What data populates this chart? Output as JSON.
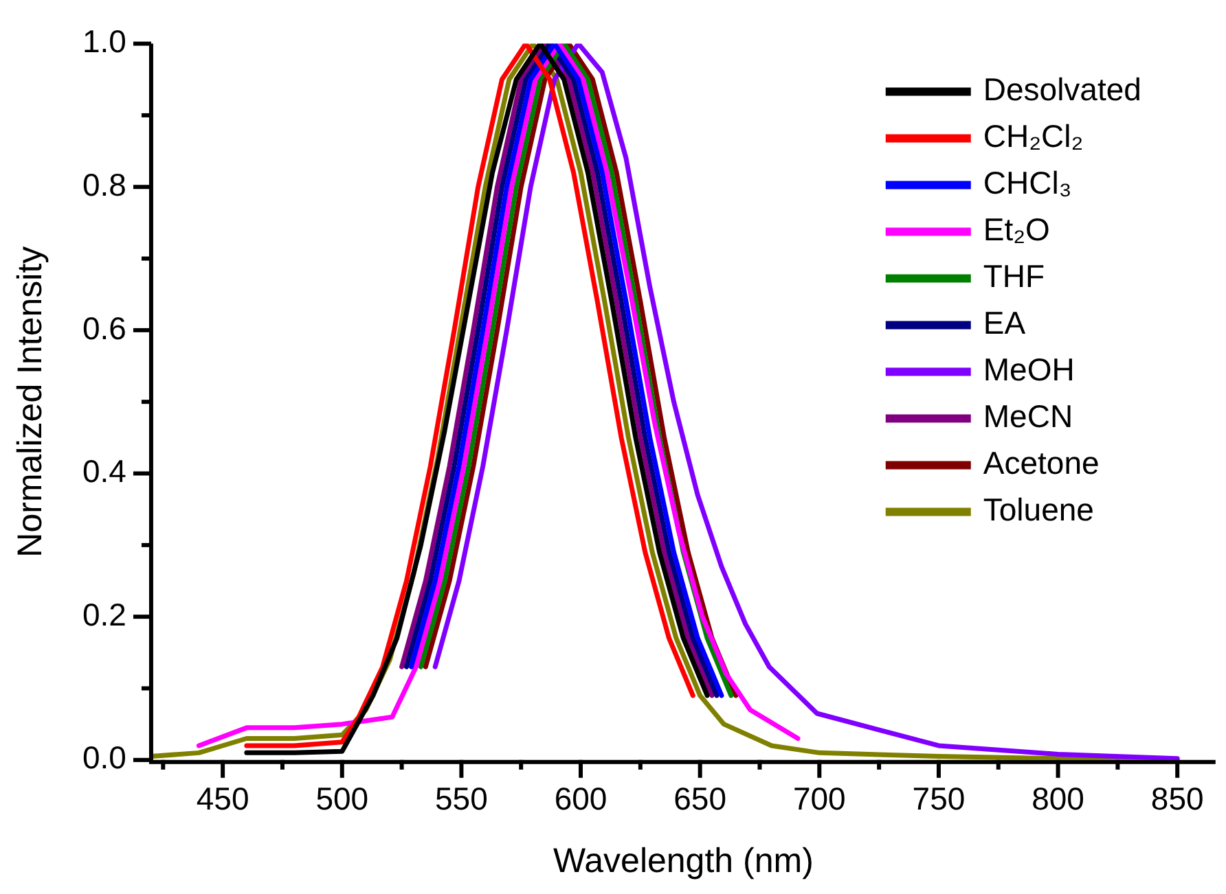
{
  "chart_data": {
    "type": "line",
    "xlabel": "Wavelength (nm)",
    "ylabel": "Normalized Intensity",
    "xlim": [
      420,
      866
    ],
    "ylim": [
      0,
      1.0
    ],
    "xticks": [
      {
        "value": 425,
        "label": null
      },
      450,
      {
        "value": 475,
        "label": null
      },
      500,
      {
        "value": 525,
        "label": null
      },
      550,
      {
        "value": 575,
        "label": null
      },
      600,
      {
        "value": 625,
        "label": null
      },
      650,
      {
        "value": 675,
        "label": null
      },
      700,
      {
        "value": 725,
        "label": null
      },
      750,
      {
        "value": 775,
        "label": null
      },
      800,
      {
        "value": 825,
        "label": null
      },
      850
    ],
    "yticks": [
      {
        "value": 0,
        "label": "0.0"
      },
      {
        "value": 0.1,
        "label": null
      },
      0.2,
      {
        "value": 0.3,
        "label": null
      },
      0.4,
      {
        "value": 0.5,
        "label": null
      },
      0.6,
      {
        "value": 0.7,
        "label": null
      },
      0.8,
      {
        "value": 0.9,
        "label": null
      },
      {
        "value": 1.0,
        "label": "1.0"
      }
    ],
    "legend": "top right",
    "grid": false,
    "marker": "none",
    "line_style": "solid",
    "series": [
      {
        "name": "Desolvated",
        "color": "#000000",
        "x": [
          460,
          480,
          500,
          513,
          523,
          533,
          543,
          553,
          563,
          573,
          583,
          593,
          603,
          613,
          623,
          633,
          643,
          653
        ],
        "values": [
          0.01,
          0.01,
          0.012,
          0.09,
          0.17,
          0.3,
          0.46,
          0.64,
          0.82,
          0.95,
          1,
          0.95,
          0.82,
          0.64,
          0.45,
          0.29,
          0.17,
          0.09
        ]
      },
      {
        "name": "CH₂Cl₂",
        "color": "#ff0000",
        "x": [
          460,
          480,
          500,
          507,
          517,
          527,
          537,
          547,
          557,
          567,
          577,
          587,
          597,
          607,
          617,
          627,
          637,
          647
        ],
        "values": [
          0.02,
          0.02,
          0.025,
          0.06,
          0.13,
          0.25,
          0.41,
          0.6,
          0.8,
          0.95,
          1,
          0.95,
          0.82,
          0.64,
          0.45,
          0.29,
          0.17,
          0.09
        ]
      },
      {
        "name": "CHCl₃",
        "color": "#0000ff",
        "x": [
          529,
          539,
          549,
          559,
          569,
          579,
          589,
          599,
          609,
          619,
          629,
          639,
          649,
          659
        ],
        "values": [
          0.13,
          0.25,
          0.41,
          0.6,
          0.8,
          0.95,
          1,
          0.95,
          0.82,
          0.64,
          0.45,
          0.29,
          0.17,
          0.09
        ]
      },
      {
        "name": "Et₂O",
        "color": "#ff00ff",
        "x": [
          440,
          460,
          480,
          500,
          521,
          531,
          541,
          551,
          561,
          571,
          581,
          591,
          601,
          611,
          621,
          631,
          641,
          651,
          661,
          671,
          691
        ],
        "values": [
          0.02,
          0.045,
          0.045,
          0.05,
          0.06,
          0.13,
          0.25,
          0.41,
          0.6,
          0.8,
          0.95,
          1,
          0.95,
          0.82,
          0.65,
          0.47,
          0.32,
          0.2,
          0.12,
          0.07,
          0.03
        ]
      },
      {
        "name": "THF",
        "color": "#008000",
        "x": [
          533,
          543,
          553,
          563,
          573,
          583,
          593,
          603,
          613,
          623,
          633,
          643,
          653,
          663
        ],
        "values": [
          0.13,
          0.25,
          0.41,
          0.6,
          0.8,
          0.95,
          1,
          0.95,
          0.82,
          0.64,
          0.45,
          0.29,
          0.17,
          0.09
        ]
      },
      {
        "name": "EA",
        "color": "#000080",
        "x": [
          527,
          537,
          547,
          557,
          567,
          577,
          587,
          597,
          607,
          617,
          627,
          637,
          647,
          657
        ],
        "values": [
          0.13,
          0.25,
          0.41,
          0.6,
          0.8,
          0.95,
          1,
          0.95,
          0.82,
          0.64,
          0.45,
          0.29,
          0.17,
          0.09
        ]
      },
      {
        "name": "MeOH",
        "color": "#8000ff",
        "x": [
          539,
          549,
          559,
          569,
          579,
          589,
          599,
          609,
          619,
          629,
          639,
          649,
          659,
          669,
          679,
          699,
          750,
          800,
          850
        ],
        "values": [
          0.13,
          0.25,
          0.41,
          0.6,
          0.8,
          0.95,
          1,
          0.96,
          0.84,
          0.66,
          0.5,
          0.37,
          0.27,
          0.19,
          0.13,
          0.065,
          0.02,
          0.008,
          0.002
        ]
      },
      {
        "name": "MeCN",
        "color": "#800080",
        "x": [
          525,
          535,
          545,
          555,
          565,
          575,
          585,
          595,
          605,
          615,
          625,
          635,
          645,
          655
        ],
        "values": [
          0.13,
          0.25,
          0.41,
          0.6,
          0.8,
          0.95,
          1,
          0.95,
          0.82,
          0.64,
          0.45,
          0.29,
          0.17,
          0.09
        ]
      },
      {
        "name": "Acetone",
        "color": "#800000",
        "x": [
          535,
          545,
          555,
          565,
          575,
          585,
          595,
          605,
          615,
          625,
          635,
          645,
          655,
          665
        ],
        "values": [
          0.13,
          0.25,
          0.41,
          0.6,
          0.8,
          0.95,
          1,
          0.95,
          0.82,
          0.64,
          0.45,
          0.29,
          0.17,
          0.09
        ]
      },
      {
        "name": "Toluene",
        "color": "#808000",
        "x": [
          420,
          440,
          460,
          480,
          500,
          510,
          520,
          530,
          540,
          550,
          560,
          570,
          580,
          590,
          600,
          610,
          620,
          630,
          640,
          650,
          660,
          680,
          700,
          750,
          800,
          850
        ],
        "values": [
          0.005,
          0.01,
          0.03,
          0.03,
          0.035,
          0.07,
          0.14,
          0.26,
          0.42,
          0.61,
          0.8,
          0.95,
          1,
          0.95,
          0.82,
          0.64,
          0.45,
          0.29,
          0.17,
          0.09,
          0.05,
          0.02,
          0.01,
          0.005,
          0.002,
          0
        ]
      }
    ]
  }
}
